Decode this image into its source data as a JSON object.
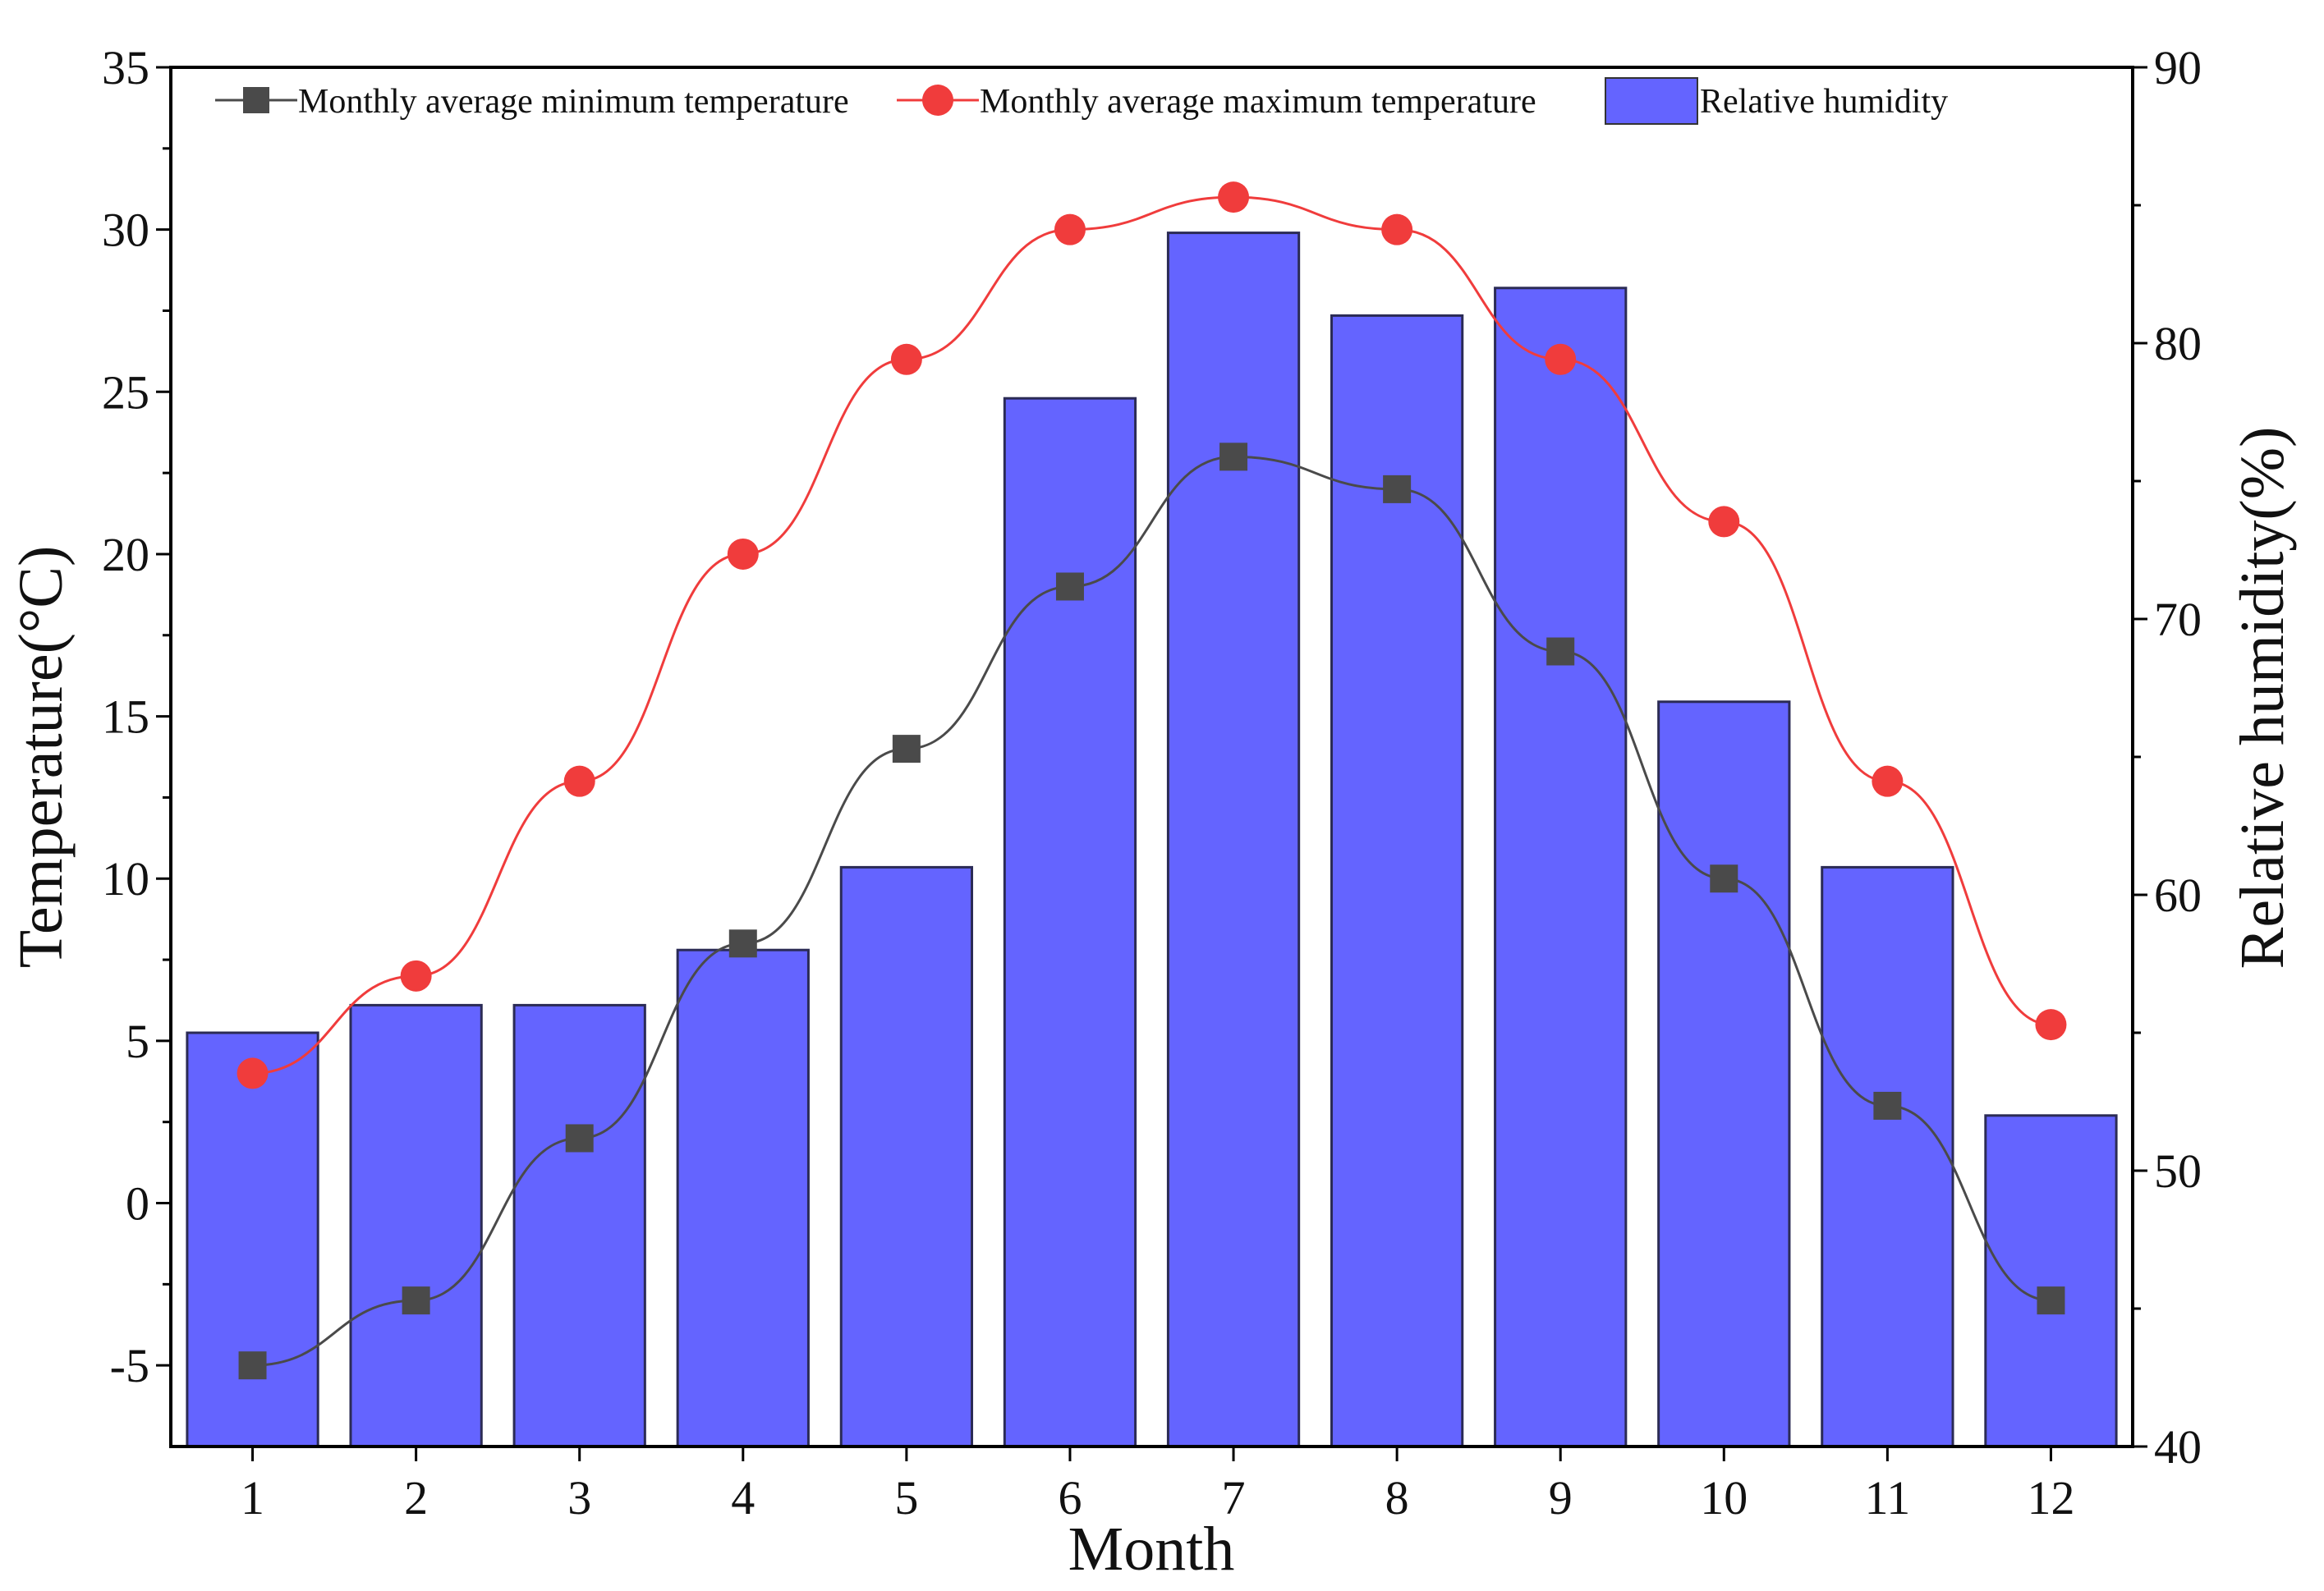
{
  "chart_data": {
    "type": "bar",
    "categories": [
      "1",
      "2",
      "3",
      "4",
      "5",
      "6",
      "7",
      "8",
      "9",
      "10",
      "11",
      "12"
    ],
    "xlabel": "Month",
    "ylabel": "Temperature(°C)",
    "y2label": "Relative humidity(%)",
    "ylim": [
      -7.5,
      35
    ],
    "y2lim": [
      40,
      90
    ],
    "yticks": [
      -5,
      0,
      5,
      10,
      15,
      20,
      25,
      30,
      35
    ],
    "y2ticks": [
      40,
      50,
      60,
      70,
      80,
      90
    ],
    "legend_position": "top",
    "series": [
      {
        "name": "Monthly average minimum temperature",
        "type": "line",
        "axis": "left",
        "marker": "square",
        "color": "#4a4a4a",
        "values": [
          -5,
          -3,
          2,
          8,
          14,
          19,
          23,
          22,
          17,
          10,
          3,
          -3
        ]
      },
      {
        "name": "Monthly average maximum temperature",
        "type": "line",
        "axis": "left",
        "marker": "circle",
        "color": "#f03c3c",
        "values": [
          4,
          7,
          13,
          20,
          26,
          30,
          31,
          30,
          26,
          21,
          13,
          5.5
        ]
      },
      {
        "name": "Relative humidity",
        "type": "bar",
        "axis": "right",
        "color": "#6464ff",
        "values": [
          55,
          56,
          56,
          58,
          61,
          78,
          84,
          81,
          82,
          67,
          61,
          52
        ]
      }
    ]
  }
}
